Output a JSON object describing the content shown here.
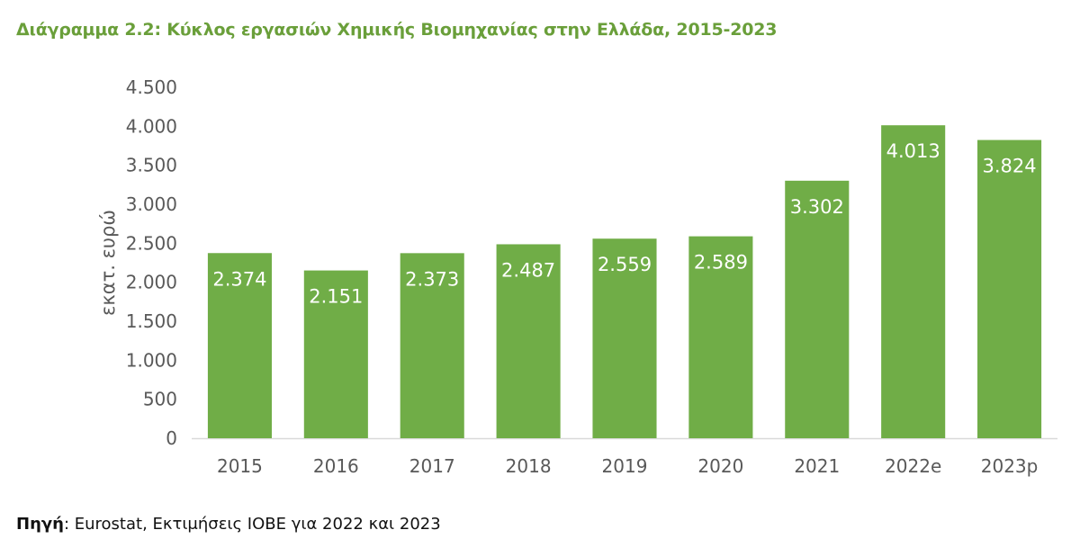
{
  "colors": {
    "title": "#6a9f3a",
    "bar": "#70ad47",
    "bar_label": "#ffffff",
    "tick_label": "#595959",
    "axis_line": "#d9d9d9"
  },
  "chart_data": {
    "type": "bar",
    "title": "Διάγραμμα 2.2: Κύκλος εργασιών Χημικής Βιομηχανίας στην Ελλάδα, 2015-2023",
    "xlabel": "",
    "ylabel": "εκατ. ευρώ",
    "categories": [
      "2015",
      "2016",
      "2017",
      "2018",
      "2019",
      "2020",
      "2021",
      "2022e",
      "2023p"
    ],
    "values": [
      2374,
      2151,
      2373,
      2487,
      2559,
      2589,
      3302,
      4013,
      3824
    ],
    "value_labels": [
      "2.374",
      "2.151",
      "2.373",
      "2.487",
      "2.559",
      "2.589",
      "3.302",
      "4.013",
      "3.824"
    ],
    "ylim": [
      0,
      4500
    ],
    "yticks": [
      0,
      500,
      1000,
      1500,
      2000,
      2500,
      3000,
      3500,
      4000,
      4500
    ],
    "ytick_labels": [
      "0",
      "500",
      "1.000",
      "1.500",
      "2.000",
      "2.500",
      "3.000",
      "3.500",
      "4.000",
      "4.500"
    ],
    "grid": false,
    "legend": "none"
  },
  "source": {
    "label": "Πηγή",
    "text": ": Eurostat, Εκτιμήσεις ΙΟΒΕ για 2022 και 2023"
  }
}
